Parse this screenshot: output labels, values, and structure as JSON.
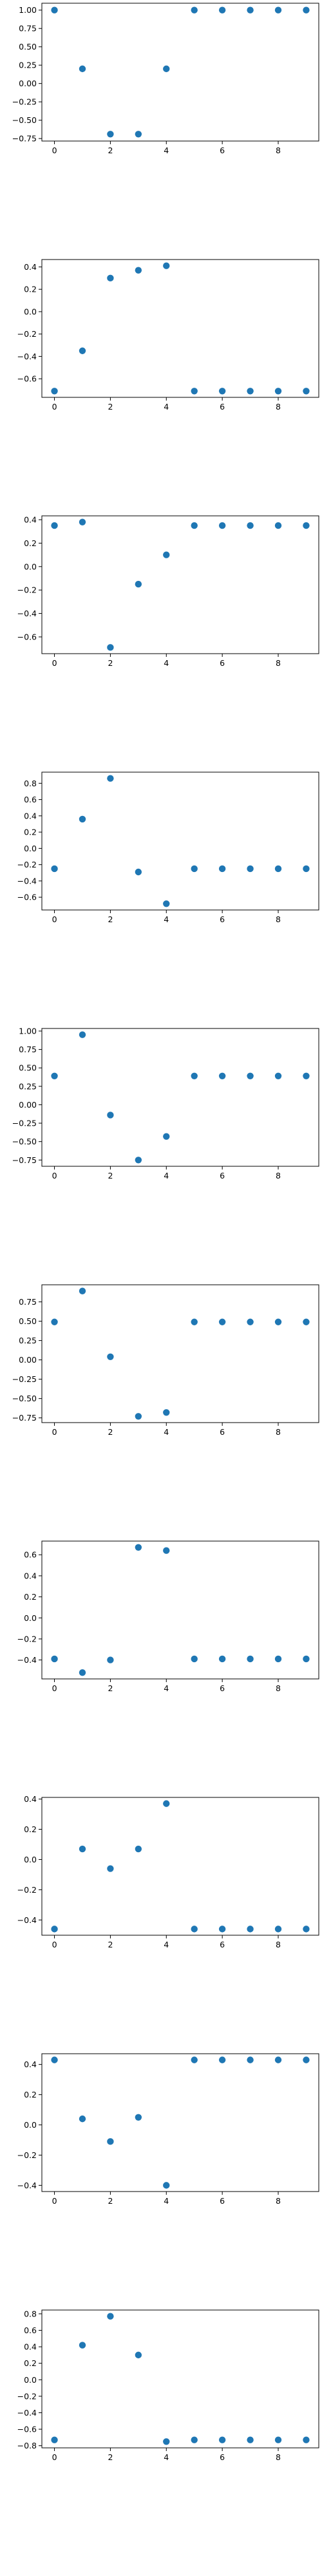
{
  "figure": {
    "background": "#ffffff"
  },
  "style": {
    "marker_color": "#1f77b4",
    "axis_color": "#000000"
  },
  "chart_data": [
    {
      "type": "scatter",
      "x": [
        0,
        1,
        2,
        3,
        4,
        5,
        6,
        7,
        8,
        9
      ],
      "y": [
        1.0,
        0.2,
        -0.69,
        -0.69,
        0.2,
        1.0,
        1.0,
        1.0,
        1.0,
        1.0
      ],
      "xlim": [
        -0.45,
        9.45
      ],
      "ylim": [
        -0.784,
        1.094
      ],
      "xticks": [
        0,
        2,
        4,
        6,
        8
      ],
      "xtick_labels": [
        "0",
        "2",
        "4",
        "6",
        "8"
      ],
      "yticks": [
        1.0,
        0.75,
        0.5,
        0.25,
        0.0,
        -0.25,
        -0.5,
        -0.75
      ],
      "ytick_labels": [
        "1.00",
        "0.75",
        "0.50",
        "0.25",
        "0.00",
        "−0.25",
        "−0.50",
        "−0.75"
      ],
      "grid": false
    },
    {
      "type": "scatter",
      "x": [
        0,
        1,
        2,
        3,
        4,
        5,
        6,
        7,
        8,
        9
      ],
      "y": [
        -0.71,
        -0.35,
        0.3,
        0.37,
        0.41,
        -0.71,
        -0.71,
        -0.71,
        -0.71,
        -0.71
      ],
      "xlim": [
        -0.45,
        9.45
      ],
      "ylim": [
        -0.766,
        0.466
      ],
      "xticks": [
        0,
        2,
        4,
        6,
        8
      ],
      "xtick_labels": [
        "0",
        "2",
        "4",
        "6",
        "8"
      ],
      "yticks": [
        0.4,
        0.2,
        0.0,
        -0.2,
        -0.4,
        -0.6
      ],
      "ytick_labels": [
        "0.4",
        "0.2",
        "0.0",
        "−0.2",
        "−0.4",
        "−0.6"
      ],
      "grid": false
    },
    {
      "type": "scatter",
      "x": [
        0,
        1,
        2,
        3,
        4,
        5,
        6,
        7,
        8,
        9
      ],
      "y": [
        0.35,
        0.38,
        -0.69,
        -0.15,
        0.1,
        0.35,
        0.35,
        0.35,
        0.35,
        0.35
      ],
      "xlim": [
        -0.45,
        9.45
      ],
      "ylim": [
        -0.743,
        0.433
      ],
      "xticks": [
        0,
        2,
        4,
        6,
        8
      ],
      "xtick_labels": [
        "0",
        "2",
        "4",
        "6",
        "8"
      ],
      "yticks": [
        0.4,
        0.2,
        0.0,
        -0.2,
        -0.4,
        -0.6
      ],
      "ytick_labels": [
        "0.4",
        "0.2",
        "0.0",
        "−0.2",
        "−0.4",
        "−0.6"
      ],
      "grid": false
    },
    {
      "type": "scatter",
      "x": [
        0,
        1,
        2,
        3,
        4,
        5,
        6,
        7,
        8,
        9
      ],
      "y": [
        -0.25,
        0.36,
        0.86,
        -0.29,
        -0.68,
        -0.25,
        -0.25,
        -0.25,
        -0.25,
        -0.25
      ],
      "xlim": [
        -0.45,
        9.45
      ],
      "ylim": [
        -0.757,
        0.937
      ],
      "xticks": [
        0,
        2,
        4,
        6,
        8
      ],
      "xtick_labels": [
        "0",
        "2",
        "4",
        "6",
        "8"
      ],
      "yticks": [
        0.8,
        0.6,
        0.4,
        0.2,
        0.0,
        -0.2,
        -0.4,
        -0.6
      ],
      "ytick_labels": [
        "0.8",
        "0.6",
        "0.4",
        "0.2",
        "0.0",
        "−0.2",
        "−0.4",
        "−0.6"
      ],
      "grid": false
    },
    {
      "type": "scatter",
      "x": [
        0,
        1,
        2,
        3,
        4,
        5,
        6,
        7,
        8,
        9
      ],
      "y": [
        0.39,
        0.95,
        -0.14,
        -0.75,
        -0.43,
        0.39,
        0.39,
        0.39,
        0.39,
        0.39
      ],
      "xlim": [
        -0.45,
        9.45
      ],
      "ylim": [
        -0.835,
        1.035
      ],
      "xticks": [
        0,
        2,
        4,
        6,
        8
      ],
      "xtick_labels": [
        "0",
        "2",
        "4",
        "6",
        "8"
      ],
      "yticks": [
        1.0,
        0.75,
        0.5,
        0.25,
        0.0,
        -0.25,
        -0.5,
        -0.75
      ],
      "ytick_labels": [
        "1.00",
        "0.75",
        "0.50",
        "0.25",
        "0.00",
        "−0.25",
        "−0.50",
        "−0.75"
      ],
      "grid": false
    },
    {
      "type": "scatter",
      "x": [
        0,
        1,
        2,
        3,
        4,
        5,
        6,
        7,
        8,
        9
      ],
      "y": [
        0.49,
        0.89,
        0.04,
        -0.73,
        -0.68,
        0.49,
        0.49,
        0.49,
        0.49,
        0.49
      ],
      "xlim": [
        -0.45,
        9.45
      ],
      "ylim": [
        -0.811,
        0.971
      ],
      "xticks": [
        0,
        2,
        4,
        6,
        8
      ],
      "xtick_labels": [
        "0",
        "2",
        "4",
        "6",
        "8"
      ],
      "yticks": [
        0.75,
        0.5,
        0.25,
        0.0,
        -0.25,
        -0.5,
        -0.75
      ],
      "ytick_labels": [
        "0.75",
        "0.50",
        "0.25",
        "0.00",
        "−0.25",
        "−0.50",
        "−0.75"
      ],
      "grid": false
    },
    {
      "type": "scatter",
      "x": [
        0,
        1,
        2,
        3,
        4,
        5,
        6,
        7,
        8,
        9
      ],
      "y": [
        -0.39,
        -0.52,
        -0.4,
        0.67,
        0.64,
        -0.39,
        -0.39,
        -0.39,
        -0.39,
        -0.39
      ],
      "xlim": [
        -0.45,
        9.45
      ],
      "ylim": [
        -0.58,
        0.73
      ],
      "xticks": [
        0,
        2,
        4,
        6,
        8
      ],
      "xtick_labels": [
        "0",
        "2",
        "4",
        "6",
        "8"
      ],
      "yticks": [
        0.6,
        0.4,
        0.2,
        0.0,
        -0.2,
        -0.4
      ],
      "ytick_labels": [
        "0.6",
        "0.4",
        "0.2",
        "0.0",
        "−0.2",
        "−0.4"
      ],
      "grid": false
    },
    {
      "type": "scatter",
      "x": [
        0,
        1,
        2,
        3,
        4,
        5,
        6,
        7,
        8,
        9
      ],
      "y": [
        -0.46,
        0.07,
        -0.06,
        0.07,
        0.37,
        -0.46,
        -0.46,
        -0.46,
        -0.46,
        -0.46
      ],
      "xlim": [
        -0.45,
        9.45
      ],
      "ylim": [
        -0.501,
        0.411
      ],
      "xticks": [
        0,
        2,
        4,
        6,
        8
      ],
      "xtick_labels": [
        "0",
        "2",
        "4",
        "6",
        "8"
      ],
      "yticks": [
        0.4,
        0.2,
        0.0,
        -0.2,
        -0.4
      ],
      "ytick_labels": [
        "0.4",
        "0.2",
        "0.0",
        "−0.2",
        "−0.4"
      ],
      "grid": false
    },
    {
      "type": "scatter",
      "x": [
        0,
        1,
        2,
        3,
        4,
        5,
        6,
        7,
        8,
        9
      ],
      "y": [
        0.43,
        0.04,
        -0.11,
        0.05,
        -0.4,
        0.43,
        0.43,
        0.43,
        0.43,
        0.43
      ],
      "xlim": [
        -0.45,
        9.45
      ],
      "ylim": [
        -0.441,
        0.471
      ],
      "xticks": [
        0,
        2,
        4,
        6,
        8
      ],
      "xtick_labels": [
        "0",
        "2",
        "4",
        "6",
        "8"
      ],
      "yticks": [
        0.4,
        0.2,
        0.0,
        -0.2,
        -0.4
      ],
      "ytick_labels": [
        "0.4",
        "0.2",
        "0.0",
        "−0.2",
        "−0.4"
      ],
      "grid": false
    },
    {
      "type": "scatter",
      "x": [
        0,
        1,
        2,
        3,
        4,
        5,
        6,
        7,
        8,
        9
      ],
      "y": [
        -0.73,
        0.42,
        0.77,
        0.3,
        -0.75,
        -0.73,
        -0.73,
        -0.73,
        -0.73,
        -0.73
      ],
      "xlim": [
        -0.45,
        9.45
      ],
      "ylim": [
        -0.826,
        0.846
      ],
      "xticks": [
        0,
        2,
        4,
        6,
        8
      ],
      "xtick_labels": [
        "0",
        "2",
        "4",
        "6",
        "8"
      ],
      "yticks": [
        0.8,
        0.6,
        0.4,
        0.2,
        0.0,
        -0.2,
        -0.4,
        -0.6,
        -0.8
      ],
      "ytick_labels": [
        "0.8",
        "0.6",
        "0.4",
        "0.2",
        "0.0",
        "−0.2",
        "−0.4",
        "−0.6",
        "−0.8"
      ],
      "grid": false
    }
  ]
}
